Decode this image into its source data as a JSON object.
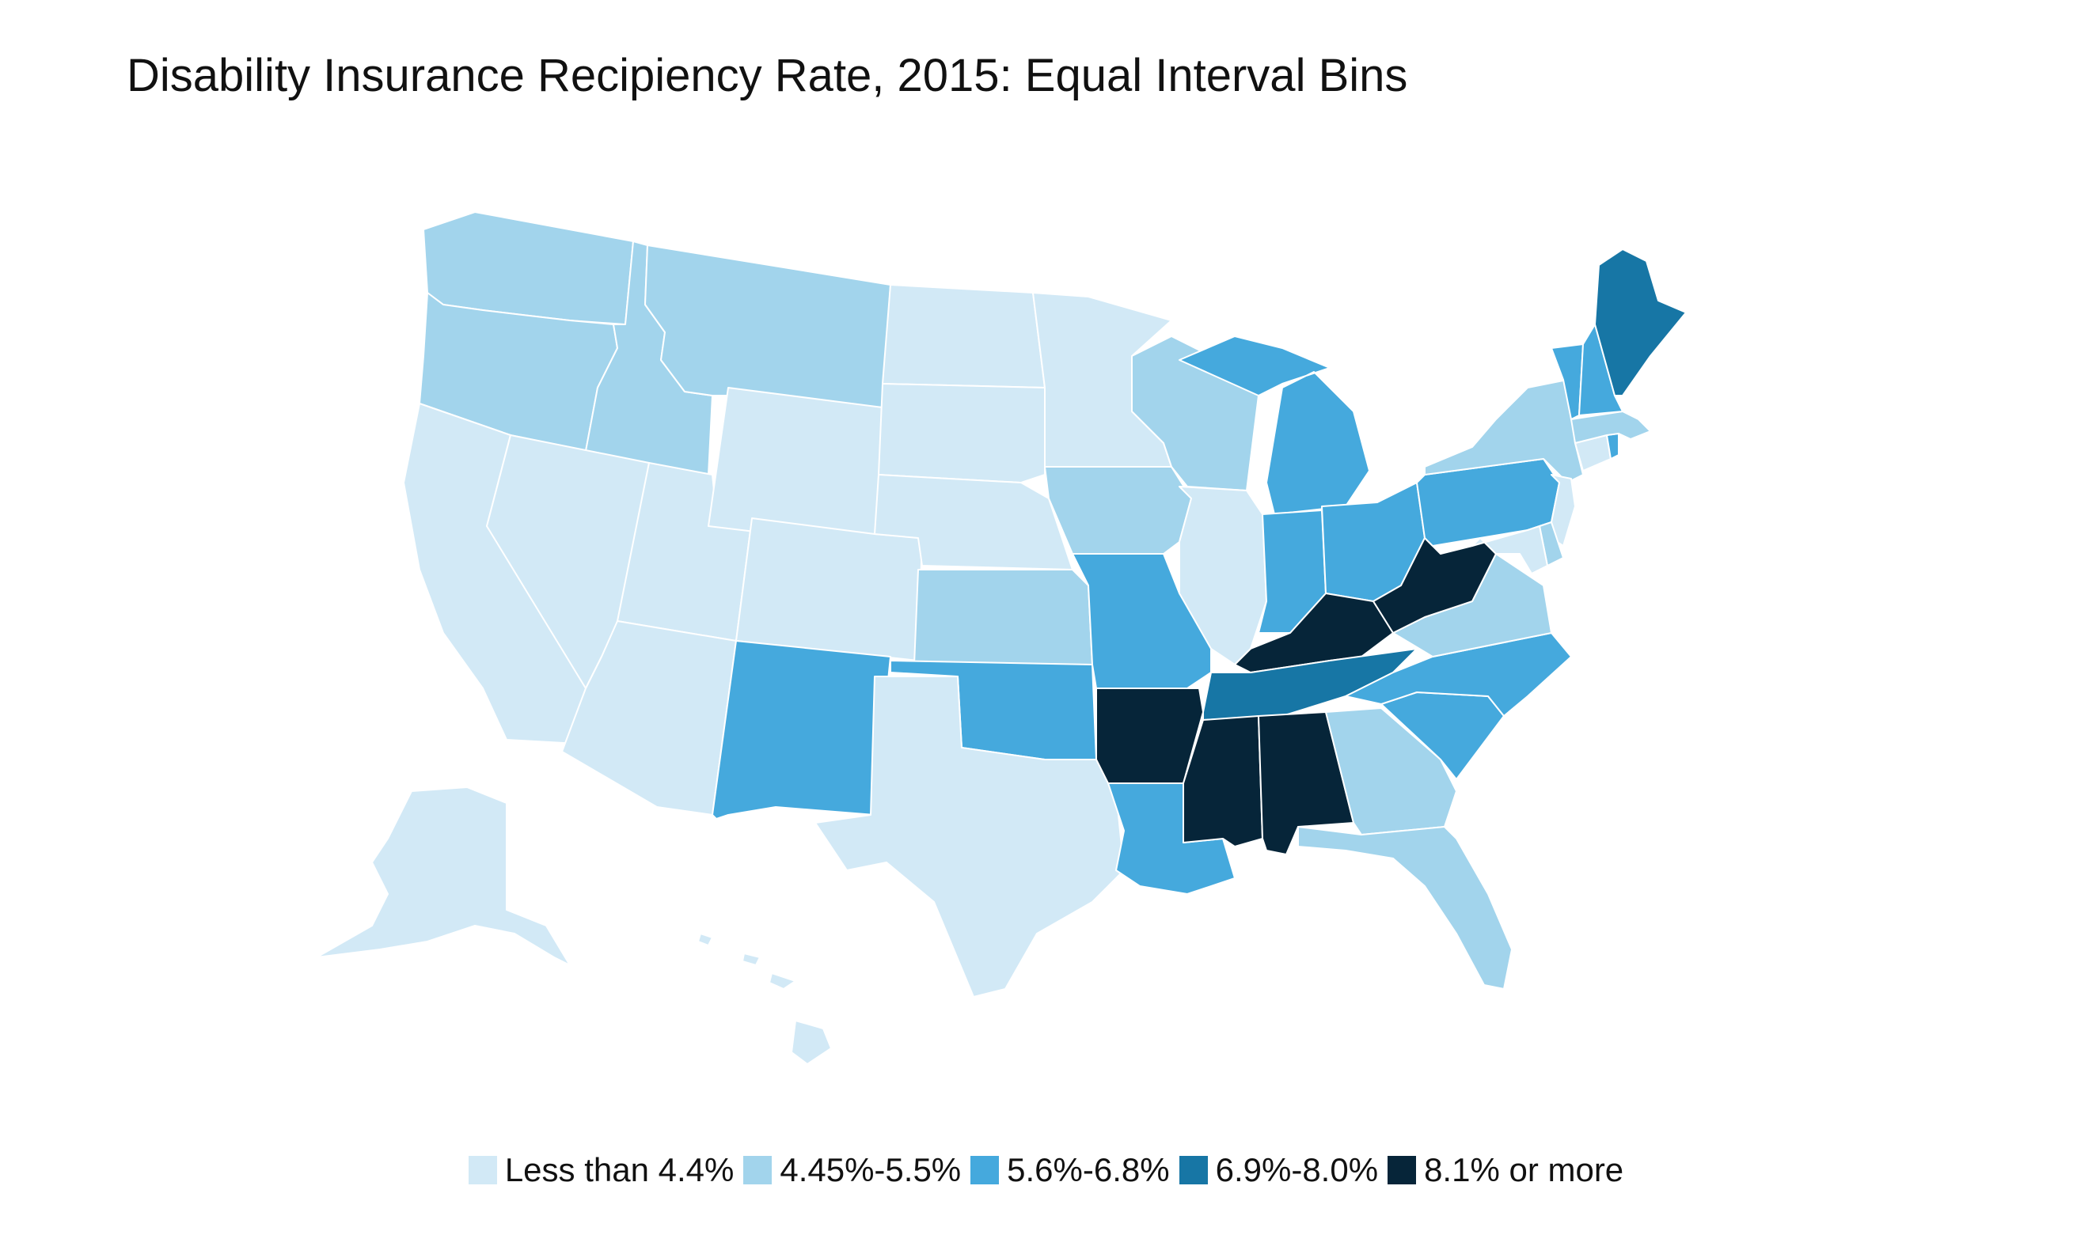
{
  "title": "Disability Insurance Recipiency Rate, 2015: Equal Interval Bins",
  "colors": {
    "bin1": "#d2e9f6",
    "bin2": "#a2d4ec",
    "bin3": "#45a9dd",
    "bin4": "#1776a5",
    "bin5": "#062539"
  },
  "legend": [
    {
      "label": "Less than 4.4%",
      "bin": "bin1"
    },
    {
      "label": "4.45%-5.5%",
      "bin": "bin2"
    },
    {
      "label": "5.6%-6.8%",
      "bin": "bin3"
    },
    {
      "label": "6.9%-8.0%",
      "bin": "bin4"
    },
    {
      "label": "8.1% or more",
      "bin": "bin5"
    }
  ],
  "states": {
    "WA": "bin2",
    "OR": "bin2",
    "ID": "bin2",
    "MT": "bin2",
    "CA": "bin1",
    "NV": "bin1",
    "UT": "bin1",
    "AZ": "bin1",
    "WY": "bin1",
    "CO": "bin1",
    "NM": "bin3",
    "ND": "bin1",
    "SD": "bin1",
    "NE": "bin1",
    "KS": "bin2",
    "OK": "bin3",
    "TX": "bin1",
    "MN": "bin1",
    "IA": "bin2",
    "MO": "bin3",
    "AR": "bin5",
    "LA": "bin3",
    "WI": "bin2",
    "IL": "bin1",
    "MI": "bin3",
    "IN": "bin3",
    "OH": "bin3",
    "KY": "bin5",
    "TN": "bin4",
    "MS": "bin5",
    "AL": "bin5",
    "GA": "bin2",
    "FL": "bin2",
    "SC": "bin3",
    "NC": "bin3",
    "VA": "bin2",
    "WV": "bin5",
    "PA": "bin3",
    "NY": "bin2",
    "NJ": "bin1",
    "DE": "bin2",
    "MD": "bin1",
    "CT": "bin1",
    "RI": "bin3",
    "MA": "bin2",
    "VT": "bin3",
    "NH": "bin3",
    "ME": "bin4",
    "AK": "bin1",
    "HI": "bin1"
  }
}
